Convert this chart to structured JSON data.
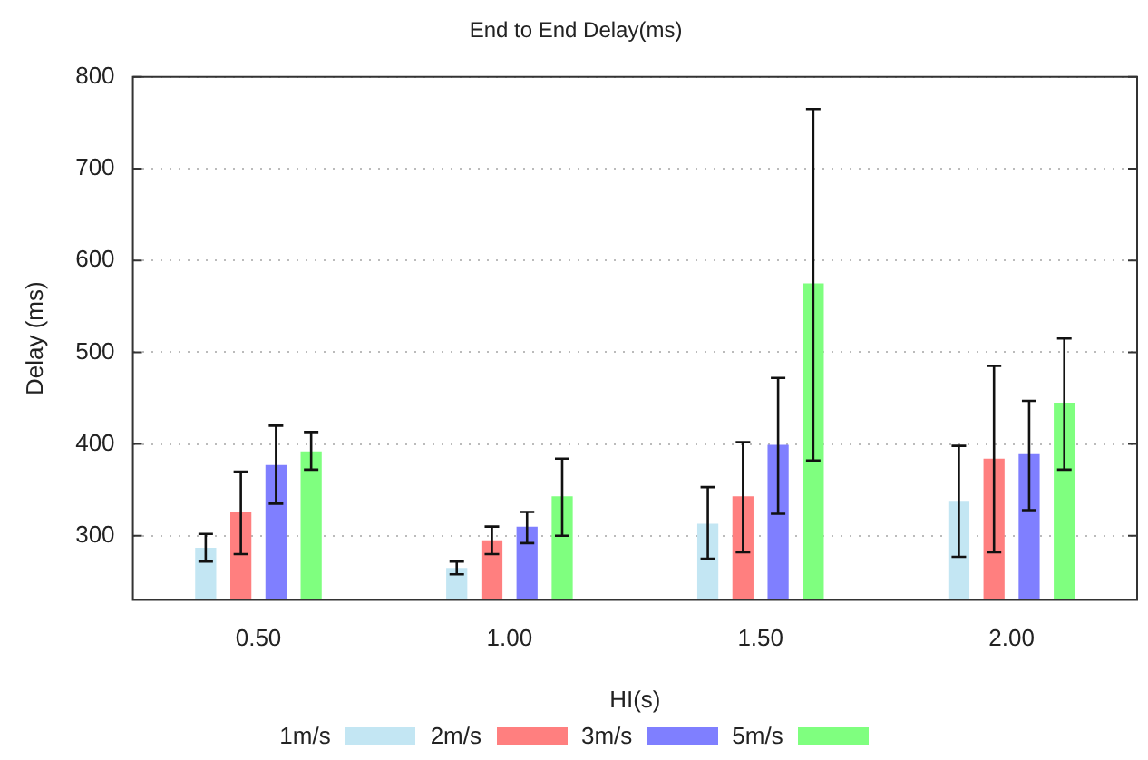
{
  "chart_data": {
    "type": "bar",
    "title": "End to End Delay(ms)",
    "xlabel": "HI(s)",
    "ylabel": "Delay (ms)",
    "categories": [
      "0.50",
      "1.00",
      "1.50",
      "2.00"
    ],
    "series": [
      {
        "name": "1m/s",
        "color": "#c3e6f3",
        "values": [
          287,
          265,
          313,
          338
        ],
        "errors": [
          [
            272,
            302
          ],
          [
            258,
            272
          ],
          [
            275,
            353
          ],
          [
            277,
            398
          ]
        ]
      },
      {
        "name": "2m/s",
        "color": "#ff7f7f",
        "values": [
          326,
          295,
          343,
          384
        ],
        "errors": [
          [
            280,
            370
          ],
          [
            280,
            310
          ],
          [
            282,
            402
          ],
          [
            282,
            485
          ]
        ]
      },
      {
        "name": "3m/s",
        "color": "#7f7fff",
        "values": [
          377,
          310,
          399,
          389
        ],
        "errors": [
          [
            335,
            420
          ],
          [
            292,
            326
          ],
          [
            324,
            472
          ],
          [
            328,
            447
          ]
        ]
      },
      {
        "name": "5m/s",
        "color": "#7fff7f",
        "values": [
          392,
          343,
          575,
          445
        ],
        "errors": [
          [
            372,
            413
          ],
          [
            300,
            384
          ],
          [
            382,
            765
          ],
          [
            372,
            515
          ]
        ]
      }
    ],
    "ylim": [
      230,
      800
    ],
    "yticks": [
      300,
      400,
      500,
      600,
      700,
      800
    ],
    "grid": "y",
    "legend": "bottom"
  }
}
